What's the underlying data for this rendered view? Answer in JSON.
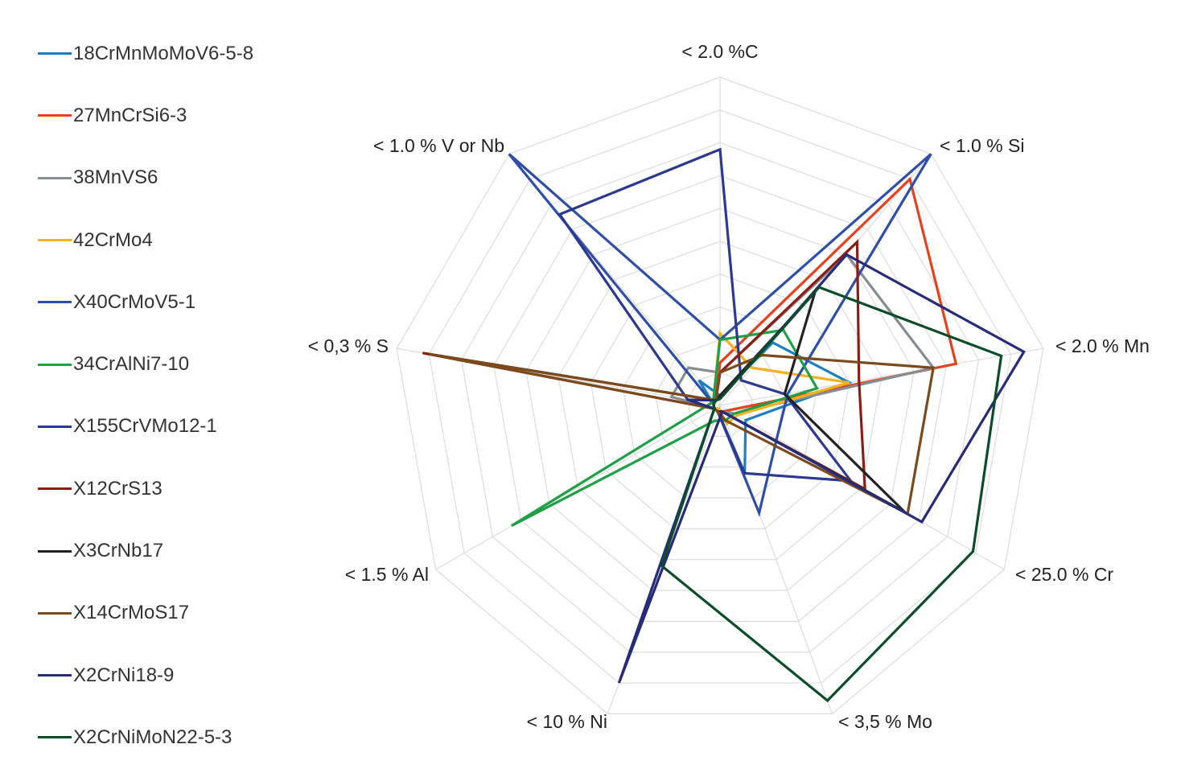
{
  "chart_data": {
    "type": "radar",
    "axes": [
      "< 2.0 %C",
      "< 1.0 % Si",
      "< 2.0 % Mn",
      "< 25.0 % Cr",
      "< 3,5 % Mo",
      "< 10 % Ni",
      "< 1.5 % Al",
      "< 0,3 % S",
      "< 1.0 % V or Nb"
    ],
    "axis_max": [
      2.0,
      1.0,
      2.0,
      25.0,
      3.5,
      10,
      1.5,
      0.3,
      1.0
    ],
    "grid": true,
    "grid_rings": 10,
    "legend_position": "left",
    "series": [
      {
        "name": "18CrMnMoMoV6-5-8",
        "color": "#1c7ec3",
        "values": [
          0.06,
          0.25,
          0.8,
          2.25,
          0.77,
          0.2,
          0.03,
          0.006,
          0.1
        ]
      },
      {
        "name": "27MnCrSi6-3",
        "color": "#e8401c",
        "values": [
          0.26,
          0.9,
          1.46,
          0.75,
          0.07,
          0.2,
          0.03,
          0.006,
          0.02
        ]
      },
      {
        "name": "38MnVS6",
        "color": "#868d91",
        "values": [
          0.2,
          0.6,
          1.32,
          1.25,
          0.07,
          0.2,
          0.03,
          0.045,
          0.15
        ]
      },
      {
        "name": "42CrMo4",
        "color": "#f4b120",
        "values": [
          0.44,
          0.15,
          0.8,
          1.5,
          0.21,
          0.1,
          0.03,
          0.006,
          0.03
        ]
      },
      {
        "name": "X40CrMoV5-1",
        "color": "#2f4ea8",
        "values": [
          0.4,
          1.0,
          0.42,
          5.0,
          1.22,
          0.2,
          0.03,
          0.006,
          1.0
        ]
      },
      {
        "name": "34CrAlNi7-10",
        "color": "#1fa047",
        "values": [
          0.4,
          0.3,
          0.6,
          1.25,
          0.17,
          0.5,
          1.1,
          0.009,
          0.03
        ]
      },
      {
        "name": "X155CrVMo12-1",
        "color": "#2b3990",
        "values": [
          1.56,
          0.1,
          0.4,
          11.5,
          0.77,
          0.2,
          0.03,
          0.03,
          0.76
        ]
      },
      {
        "name": "X12CrS13",
        "color": "#8b1e14",
        "values": [
          0.2,
          0.65,
          0.86,
          12.75,
          0.07,
          0.2,
          0.03,
          0.276,
          0.02
        ]
      },
      {
        "name": "X3CrNb17",
        "color": "#222222",
        "values": [
          0.06,
          0.45,
          0.4,
          16.25,
          0.07,
          0.2,
          0.03,
          0.006,
          0.02
        ]
      },
      {
        "name": "X14CrMoS17",
        "color": "#7b4a1c",
        "values": [
          0.2,
          0.2,
          1.32,
          16.5,
          0.17,
          0.2,
          0.03,
          0.27,
          0.02
        ]
      },
      {
        "name": "X2CrNi18-9",
        "color": "#272c7a",
        "values": [
          0.04,
          0.6,
          1.88,
          17.75,
          0.07,
          9.0,
          0.03,
          0.03,
          0.02
        ]
      },
      {
        "name": "X2CrNiMoN22-5-3",
        "color": "#0b4d28",
        "values": [
          0.04,
          0.47,
          1.74,
          22.25,
          3.35,
          5.2,
          0.03,
          0.006,
          0.02
        ]
      }
    ]
  }
}
